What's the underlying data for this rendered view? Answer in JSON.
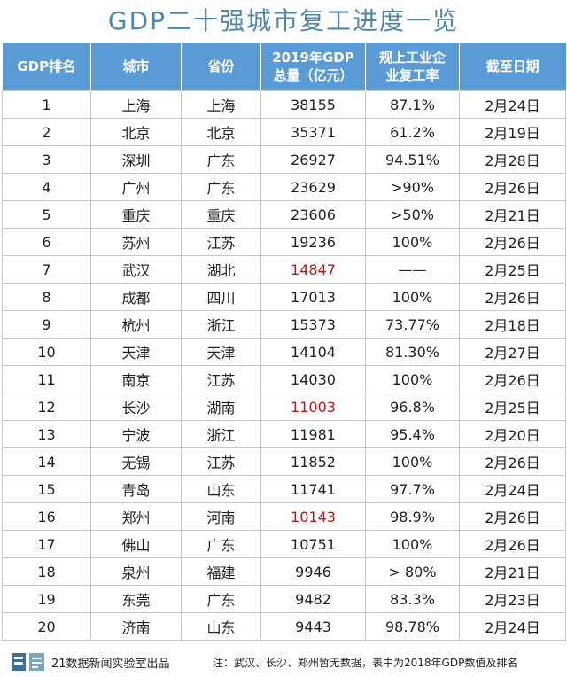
{
  "title": "GDP二十强城市复工进度一览",
  "headers": {
    "rank": "GDP排名",
    "city": "城市",
    "province": "省份",
    "gdp_line1": "2019年GDP",
    "gdp_line2": "总量（亿元）",
    "rate_line1": "规上工业企",
    "rate_line2": "业复工率",
    "date": "截至日期"
  },
  "rows": [
    {
      "rank": "1",
      "city": "上海",
      "province": "上海",
      "gdp": "38155",
      "rate": "87.1%",
      "date": "2月24日"
    },
    {
      "rank": "2",
      "city": "北京",
      "province": "北京",
      "gdp": "35371",
      "rate": "61.2%",
      "date": "2月19日"
    },
    {
      "rank": "3",
      "city": "深圳",
      "province": "广东",
      "gdp": "26927",
      "rate": "94.51%",
      "date": "2月28日"
    },
    {
      "rank": "4",
      "city": "广州",
      "province": "广东",
      "gdp": "23629",
      "rate": ">90%",
      "date": "2月26日"
    },
    {
      "rank": "5",
      "city": "重庆",
      "province": "重庆",
      "gdp": "23606",
      "rate": ">50%",
      "date": "2月21日"
    },
    {
      "rank": "6",
      "city": "苏州",
      "province": "江苏",
      "gdp": "19236",
      "rate": "100%",
      "date": "2月26日"
    },
    {
      "rank": "7",
      "city": "武汉",
      "province": "湖北",
      "gdp": "14847",
      "rate": "——",
      "date": "2月25日"
    },
    {
      "rank": "8",
      "city": "成都",
      "province": "四川",
      "gdp": "17013",
      "rate": "100%",
      "date": "2月26日"
    },
    {
      "rank": "9",
      "city": "杭州",
      "province": "浙江",
      "gdp": "15373",
      "rate": "73.77%",
      "date": "2月18日"
    },
    {
      "rank": "10",
      "city": "天津",
      "province": "天津",
      "gdp": "14104",
      "rate": "81.30%",
      "date": "2月27日"
    },
    {
      "rank": "11",
      "city": "南京",
      "province": "江苏",
      "gdp": "14030",
      "rate": "100%",
      "date": "2月26日"
    },
    {
      "rank": "12",
      "city": "长沙",
      "province": "湖南",
      "gdp": "11003",
      "rate": "96.8%",
      "date": "2月25日"
    },
    {
      "rank": "13",
      "city": "宁波",
      "province": "浙江",
      "gdp": "11981",
      "rate": "95.4%",
      "date": "2月20日"
    },
    {
      "rank": "14",
      "city": "无锡",
      "province": "江苏",
      "gdp": "11852",
      "rate": "100%",
      "date": "2月26日"
    },
    {
      "rank": "15",
      "city": "青岛",
      "province": "山东",
      "gdp": "11741",
      "rate": "97.7%",
      "date": "2月24日"
    },
    {
      "rank": "16",
      "city": "郑州",
      "province": "河南",
      "gdp": "10143",
      "rate": "98.9%",
      "date": "2月26日"
    },
    {
      "rank": "17",
      "city": "佛山",
      "province": "广东",
      "gdp": "10751",
      "rate": "100%",
      "date": "2月26日"
    },
    {
      "rank": "18",
      "city": "泉州",
      "province": "福建",
      "gdp": "9946",
      "rate": "> 80%",
      "date": "2月21日"
    },
    {
      "rank": "19",
      "city": "东莞",
      "province": "广东",
      "gdp": "9482",
      "rate": "83.3%",
      "date": "2月23日"
    },
    {
      "rank": "20",
      "city": "济南",
      "province": "山东",
      "gdp": "9443",
      "rate": "98.78%",
      "date": "2月24日"
    }
  ],
  "highlight_gdp_ranks": [
    "7",
    "12",
    "16"
  ],
  "colors": {
    "title": "#4f87a6",
    "header_bg": "#5b9bd5",
    "highlight": "#b01c1c"
  },
  "footer": {
    "logo_icon": "brand-logo-icon",
    "source": "21数据新闻实验室出品",
    "note": "注：武汉、长沙、郑州暂无数据，表中为2018年GDP数值及排名"
  }
}
